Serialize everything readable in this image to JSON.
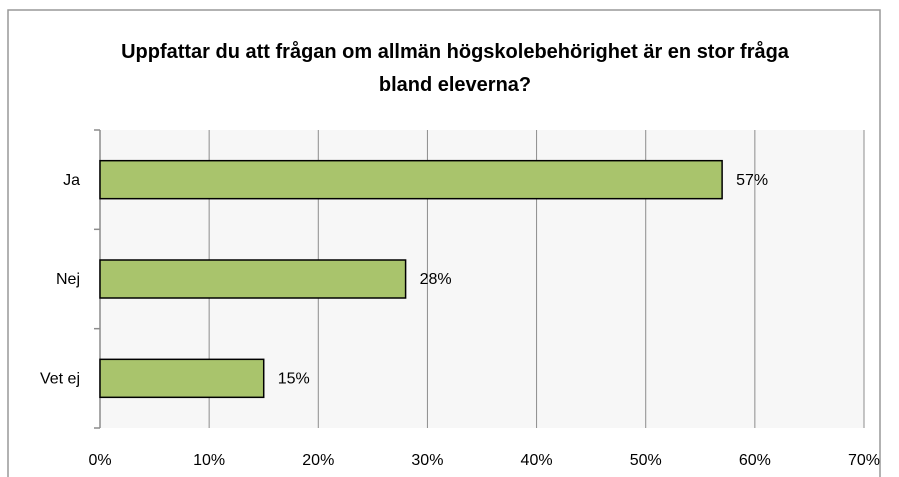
{
  "chart_data": {
    "type": "bar",
    "orientation": "horizontal",
    "title": "Uppfattar du att frågan om allmän högskolebehörighet är en stor fråga bland eleverna?",
    "categories": [
      "Ja",
      "Nej",
      "Vet ej"
    ],
    "values": [
      57,
      28,
      15
    ],
    "value_labels": [
      "57%",
      "28%",
      "15%"
    ],
    "color": "#a9c46c",
    "xlim": [
      0,
      70
    ],
    "xticks": [
      {
        "value": 0,
        "label": "0%"
      },
      {
        "value": 10,
        "label": "10%"
      },
      {
        "value": 20,
        "label": "20%"
      },
      {
        "value": 30,
        "label": "30%"
      },
      {
        "value": 40,
        "label": "40%"
      },
      {
        "value": 50,
        "label": "50%"
      },
      {
        "value": 60,
        "label": "60%"
      },
      {
        "value": 70,
        "label": "70%"
      }
    ],
    "grid": true
  }
}
